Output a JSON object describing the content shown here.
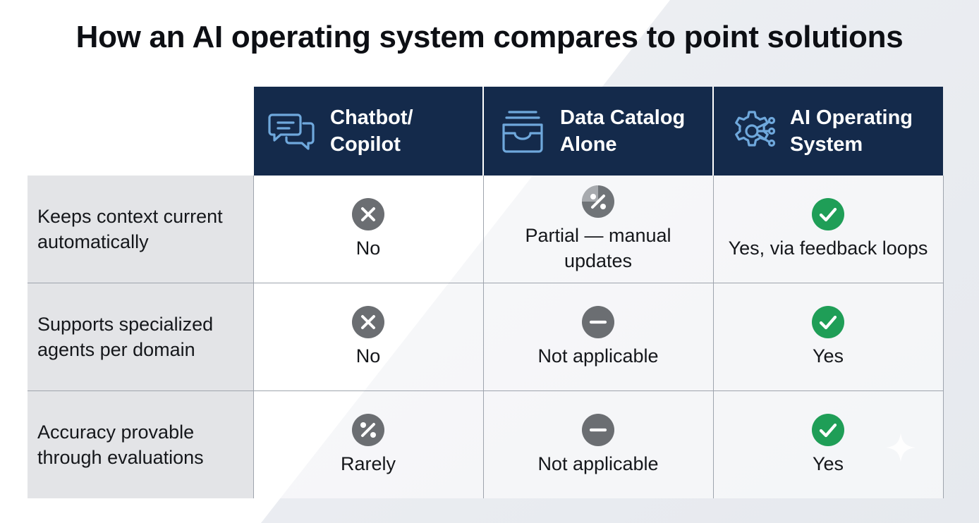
{
  "title": "How an AI operating system compares to point solutions",
  "colors": {
    "header_bg": "#142a4b",
    "header_icon": "#6fa8dc",
    "label_bg": "#e3e4e7",
    "yes_green": "#1f9e57",
    "no_gray": "#6b6e72",
    "partial_gray": "#707478"
  },
  "columns": [
    {
      "icon": "chat-bubbles-icon",
      "label": "Chatbot/\nCopilot"
    },
    {
      "icon": "inbox-tray-icon",
      "label": "Data Catalog\nAlone"
    },
    {
      "icon": "gear-circuit-icon",
      "label": "AI Operating\nSystem"
    }
  ],
  "rows": [
    {
      "label": "Keeps context current automatically",
      "cells": [
        {
          "status": "x-circle-icon",
          "text": "No"
        },
        {
          "status": "percent-circle-icon",
          "text": "Partial — manual updates"
        },
        {
          "status": "check-circle-icon",
          "text": "Yes, via feedback loops"
        }
      ]
    },
    {
      "label": "Supports specialized agents per domain",
      "cells": [
        {
          "status": "x-circle-icon",
          "text": "No"
        },
        {
          "status": "minus-circle-icon",
          "text": "Not applicable"
        },
        {
          "status": "check-circle-icon",
          "text": "Yes"
        }
      ]
    },
    {
      "label": "Accuracy provable through evaluations",
      "cells": [
        {
          "status": "percent-circle-icon",
          "text": "Rarely"
        },
        {
          "status": "minus-circle-icon",
          "text": "Not applicable"
        },
        {
          "status": "check-circle-icon",
          "text": "Yes"
        }
      ]
    }
  ]
}
